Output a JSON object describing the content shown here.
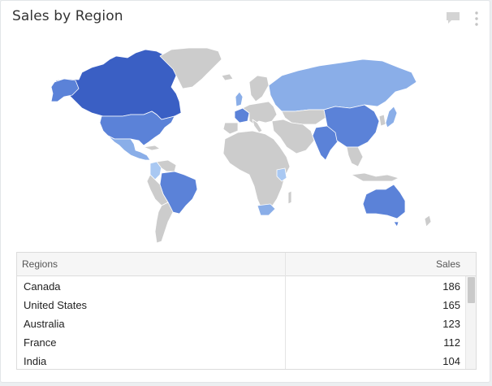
{
  "widget": {
    "title": "Sales by Region",
    "comment_icon": "comment-icon",
    "menu_icon": "kebab-menu-icon"
  },
  "colors": {
    "highest": "#3a5fc4",
    "high": "#5b82d8",
    "medium": "#8aaee8",
    "low": "#a9c8f2",
    "no_data": "#cccccc"
  },
  "map": {
    "type": "choropleth world map",
    "shaded_regions": [
      {
        "name": "Canada",
        "level": "highest"
      },
      {
        "name": "United States",
        "level": "high"
      },
      {
        "name": "Australia",
        "level": "high"
      },
      {
        "name": "France",
        "level": "high"
      },
      {
        "name": "India",
        "level": "high"
      },
      {
        "name": "China",
        "level": "high"
      },
      {
        "name": "Brazil",
        "level": "high"
      },
      {
        "name": "Russia",
        "level": "medium"
      },
      {
        "name": "Mexico",
        "level": "medium"
      },
      {
        "name": "South Africa",
        "level": "medium"
      },
      {
        "name": "Japan",
        "level": "medium"
      },
      {
        "name": "Colombia",
        "level": "low"
      },
      {
        "name": "Kenya",
        "level": "low"
      },
      {
        "name": "Greenland",
        "level": "no_data"
      }
    ]
  },
  "table": {
    "headers": {
      "region": "Regions",
      "sales": "Sales"
    },
    "rows": [
      {
        "region": "Canada",
        "sales": "186"
      },
      {
        "region": "United States",
        "sales": "165"
      },
      {
        "region": "Australia",
        "sales": "123"
      },
      {
        "region": "France",
        "sales": "112"
      },
      {
        "region": "India",
        "sales": "104"
      }
    ]
  }
}
